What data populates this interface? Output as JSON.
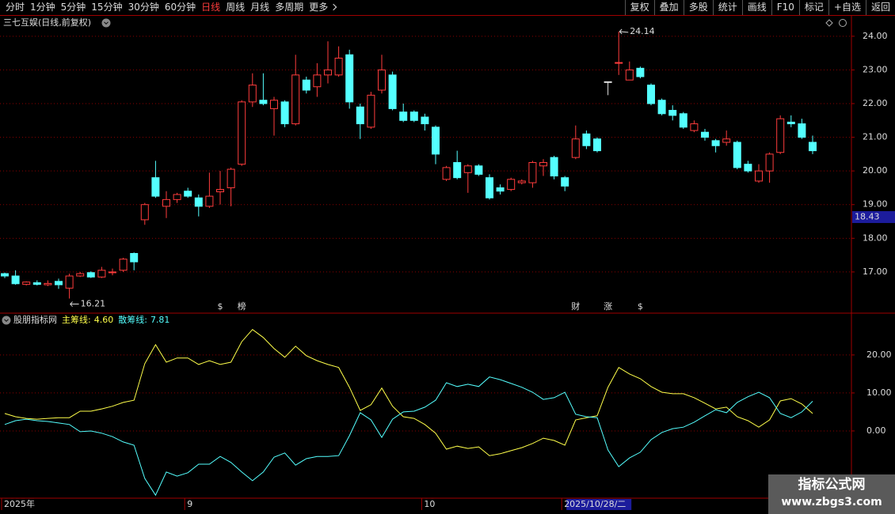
{
  "toolbar": {
    "periods": [
      {
        "label": "分时"
      },
      {
        "label": "1分钟"
      },
      {
        "label": "5分钟"
      },
      {
        "label": "15分钟"
      },
      {
        "label": "30分钟"
      },
      {
        "label": "60分钟"
      },
      {
        "label": "日线",
        "active": true
      },
      {
        "label": "周线"
      },
      {
        "label": "月线"
      },
      {
        "label": "多周期"
      },
      {
        "label": "更多",
        "menu": true
      }
    ],
    "tools": [
      "复权",
      "叠加",
      "多股",
      "统计",
      "画线",
      "F10",
      "标记",
      "+自选",
      "返回"
    ]
  },
  "watermark": {
    "title": "指标公式网",
    "url": "www.zbgs3.com"
  },
  "chart_data": [
    {
      "type": "candlestick",
      "title": "三七互娱(日线,前复权)",
      "categories": [
        "2025年",
        null,
        null,
        null,
        null,
        null,
        null,
        null,
        null,
        null,
        null,
        null,
        null,
        null,
        null,
        null,
        null,
        "9",
        null,
        null,
        null,
        null,
        null,
        null,
        null,
        null,
        null,
        null,
        null,
        null,
        null,
        null,
        null,
        null,
        null,
        null,
        null,
        null,
        null,
        "10",
        null,
        null,
        null,
        null,
        null,
        null,
        null,
        null,
        null,
        null,
        null,
        null,
        "2025/10/28/二",
        null,
        null,
        null,
        null,
        null,
        null,
        null,
        null,
        null,
        null,
        null,
        null,
        null,
        null,
        null,
        null,
        null,
        null,
        null,
        null,
        null,
        null,
        null
      ],
      "open": [
        16.95,
        16.88,
        16.63,
        16.68,
        16.62,
        16.72,
        16.52,
        16.88,
        16.98,
        16.85,
        16.98,
        17.05,
        17.55,
        18.55,
        19.8,
        18.95,
        19.15,
        19.4,
        19.2,
        18.95,
        19.38,
        19.5,
        20.2,
        22.05,
        22.1,
        21.85,
        22.05,
        21.4,
        22.7,
        22.5,
        22.85,
        22.85,
        23.45,
        21.9,
        21.3,
        22.4,
        22.85,
        21.75,
        21.75,
        21.6,
        21.3,
        19.75,
        20.25,
        19.95,
        20.15,
        19.8,
        19.5,
        19.45,
        19.65,
        19.65,
        20.15,
        20.4,
        19.8,
        20.4,
        21.1,
        20.95,
        22.65,
        23.2,
        22.7,
        23.05,
        22.55,
        22.1,
        21.8,
        21.7,
        21.2,
        21.15,
        20.9,
        20.85,
        20.85,
        20.2,
        19.7,
        20.0,
        20.55,
        21.45,
        21.4,
        20.85
      ],
      "high": [
        16.98,
        17.05,
        16.72,
        16.75,
        16.75,
        16.8,
        16.95,
        17.0,
        17.02,
        17.15,
        17.1,
        17.42,
        17.58,
        19.05,
        20.3,
        19.4,
        19.35,
        19.5,
        19.3,
        19.95,
        20.0,
        20.1,
        22.1,
        22.9,
        22.9,
        22.2,
        22.1,
        23.45,
        22.8,
        23.2,
        23.85,
        23.7,
        23.6,
        22.0,
        22.35,
        23.45,
        22.95,
        22.0,
        21.8,
        21.7,
        21.35,
        20.15,
        20.6,
        20.2,
        20.2,
        19.9,
        19.6,
        19.8,
        19.75,
        20.3,
        20.35,
        20.45,
        19.85,
        21.35,
        21.2,
        21.0,
        22.65,
        24.14,
        23.25,
        23.1,
        22.6,
        22.15,
        21.95,
        21.75,
        21.5,
        21.25,
        20.95,
        21.2,
        20.9,
        20.3,
        20.2,
        20.55,
        21.65,
        21.65,
        21.55,
        21.05
      ],
      "low": [
        16.82,
        16.62,
        16.6,
        16.6,
        16.58,
        16.5,
        16.21,
        16.85,
        16.82,
        16.82,
        16.9,
        17.0,
        17.05,
        18.4,
        19.2,
        18.6,
        19.05,
        19.2,
        18.65,
        18.9,
        19.0,
        18.95,
        20.15,
        21.9,
        21.95,
        21.05,
        21.3,
        21.35,
        22.3,
        22.2,
        22.6,
        22.8,
        21.85,
        20.95,
        21.25,
        22.3,
        21.8,
        21.45,
        21.45,
        21.2,
        20.2,
        19.7,
        19.75,
        19.35,
        19.85,
        19.15,
        19.3,
        19.4,
        19.6,
        19.5,
        19.85,
        19.75,
        19.4,
        20.35,
        20.65,
        20.55,
        22.25,
        22.85,
        22.7,
        22.75,
        21.95,
        21.65,
        21.5,
        21.25,
        21.15,
        20.9,
        20.55,
        20.75,
        20.05,
        19.95,
        19.65,
        19.65,
        20.5,
        21.3,
        20.95,
        20.5
      ],
      "close": [
        16.88,
        16.65,
        16.7,
        16.63,
        16.66,
        16.62,
        16.88,
        16.95,
        16.85,
        17.05,
        17.0,
        17.38,
        17.3,
        19.0,
        19.25,
        19.15,
        19.3,
        19.25,
        18.95,
        19.25,
        19.45,
        20.05,
        22.05,
        22.55,
        22.0,
        22.1,
        21.4,
        22.85,
        22.4,
        22.85,
        23.0,
        23.35,
        22.05,
        21.4,
        22.25,
        23.0,
        21.85,
        21.5,
        21.5,
        21.4,
        20.5,
        20.1,
        19.8,
        20.15,
        19.9,
        19.2,
        19.4,
        19.75,
        19.7,
        20.25,
        20.25,
        19.85,
        19.55,
        20.95,
        20.75,
        20.6,
        22.65,
        23.22,
        23.0,
        22.8,
        22.0,
        21.7,
        21.65,
        21.3,
        21.4,
        21.0,
        20.75,
        20.95,
        20.1,
        20.0,
        20.0,
        20.5,
        21.55,
        21.4,
        21.0,
        20.6
      ],
      "event_markers": [
        null,
        null,
        null,
        null,
        null,
        null,
        null,
        null,
        null,
        null,
        null,
        null,
        null,
        null,
        null,
        null,
        null,
        null,
        null,
        null,
        "$",
        null,
        "榜",
        null,
        null,
        null,
        null,
        null,
        null,
        null,
        null,
        null,
        null,
        null,
        null,
        null,
        null,
        null,
        null,
        null,
        null,
        null,
        null,
        null,
        null,
        null,
        null,
        null,
        null,
        null,
        null,
        null,
        null,
        "财",
        null,
        null,
        "涨",
        null,
        null,
        "$",
        null,
        null,
        null,
        null,
        null,
        null,
        null,
        null,
        null,
        null,
        null,
        null,
        null,
        null,
        null,
        null
      ],
      "up_color": "#ff3c3c",
      "down_color": "#54ffff",
      "flat_color": "#e0e0e0",
      "cursor_price": 18.43,
      "ylim": [
        15.8,
        24.56
      ],
      "yticks": [
        {
          "value": 17,
          "label": "17.00"
        },
        {
          "value": 18,
          "label": "18.00"
        },
        {
          "value": 19,
          "label": "19.00"
        },
        {
          "value": 20,
          "label": "20.00"
        },
        {
          "value": 21,
          "label": "21.00"
        },
        {
          "value": 22,
          "label": "22.00"
        },
        {
          "value": 23,
          "label": "23.00"
        },
        {
          "value": 24,
          "label": "24.00"
        }
      ],
      "grid": true
    },
    {
      "type": "line",
      "title": "股朋指标网",
      "series": [
        {
          "name": "主筹线:",
          "color": "#ffff4a",
          "current_label": "4.60",
          "values": [
            4.6,
            3.75,
            3.3,
            3.1,
            3.3,
            3.5,
            3.5,
            5.2,
            5.2,
            5.8,
            6.5,
            7.5,
            8.1,
            17.7,
            22.7,
            18.1,
            19.2,
            19.2,
            17.5,
            18.5,
            17.5,
            18.1,
            23.5,
            26.7,
            24.6,
            21.7,
            19.4,
            22.3,
            19.8,
            18.5,
            17.5,
            16.7,
            11.5,
            5.4,
            6.9,
            11.3,
            6.5,
            3.75,
            3.3,
            1.7,
            -0.6,
            -4.8,
            -4.0,
            -4.6,
            -4.2,
            -6.5,
            -6.0,
            -5.2,
            -4.4,
            -3.3,
            -1.9,
            -2.5,
            -3.75,
            2.9,
            3.5,
            4.0,
            11.5,
            16.7,
            15.0,
            13.75,
            11.7,
            10.2,
            9.8,
            9.8,
            8.75,
            7.3,
            5.8,
            6.25,
            3.75,
            2.7,
            1.0,
            2.9,
            7.9,
            8.5,
            7.1,
            4.6
          ]
        },
        {
          "name": "散筹线:",
          "color": "#54ffff",
          "current_label": "7.81",
          "values": [
            1.7,
            2.7,
            3.1,
            2.7,
            2.5,
            2.1,
            1.7,
            -0.2,
            0,
            -0.6,
            -1.5,
            -2.9,
            -3.75,
            -12.5,
            -16.9,
            -10.8,
            -11.9,
            -11.0,
            -8.75,
            -8.75,
            -6.7,
            -8.3,
            -10.8,
            -13.1,
            -10.8,
            -6.9,
            -5.8,
            -9.0,
            -7.3,
            -6.7,
            -6.7,
            -6.5,
            -1.25,
            4.8,
            2.9,
            -1.7,
            3.1,
            5.0,
            5.2,
            6.25,
            8.1,
            12.7,
            11.7,
            12.3,
            11.7,
            14.2,
            13.5,
            12.5,
            11.5,
            10.2,
            8.3,
            8.75,
            10.2,
            4.4,
            3.75,
            3.5,
            -5.0,
            -9.4,
            -7.1,
            -5.6,
            -2.3,
            -0.4,
            0.6,
            1.0,
            2.3,
            4.0,
            5.6,
            4.8,
            7.5,
            9.0,
            10.2,
            8.75,
            4.6,
            3.5,
            5.0,
            7.81
          ]
        }
      ],
      "ylim": [
        -17.7,
        30.8
      ],
      "yticks": [
        {
          "value": 0,
          "label": "0.00"
        },
        {
          "value": 10,
          "label": "10.00"
        },
        {
          "value": 20,
          "label": "20.00"
        }
      ],
      "grid": true
    }
  ]
}
